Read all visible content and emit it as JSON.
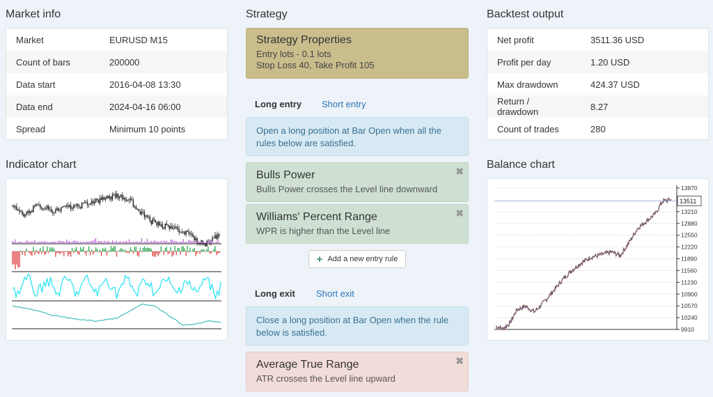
{
  "market_info": {
    "title": "Market info",
    "rows": [
      {
        "label": "Market",
        "value": "EURUSD M15"
      },
      {
        "label": "Count of bars",
        "value": "200000"
      },
      {
        "label": "Data start",
        "value": "2016-04-08 13:30"
      },
      {
        "label": "Data end",
        "value": "2024-04-16 06:00"
      },
      {
        "label": "Spread",
        "value": "Minimum 10 points"
      }
    ]
  },
  "indicator_chart": {
    "title": "Indicator chart"
  },
  "strategy": {
    "title": "Strategy",
    "properties": {
      "heading": "Strategy Properties",
      "line1": "Entry lots - 0.1 lots",
      "line2": "Stop Loss 40, Take Profit 105"
    },
    "entry_tabs": {
      "long": "Long entry",
      "short": "Short entry"
    },
    "entry_info": "Open a long position at Bar Open when all the rules below are satisfied.",
    "entry_rules": [
      {
        "name": "Bulls Power",
        "desc": "Bulls Power crosses the Level line downward"
      },
      {
        "name": "Williams' Percent Range",
        "desc": "WPR is higher than the Level line"
      }
    ],
    "add_entry_label": "Add a new entry rule",
    "exit_tabs": {
      "long": "Long exit",
      "short": "Short exit"
    },
    "exit_info": "Close a long position at Bar Open when the rule below is satisfied.",
    "exit_rules": [
      {
        "name": "Average True Range",
        "desc": "ATR crosses the Level line upward"
      }
    ],
    "remove_icon": "✖",
    "plus_icon": "+"
  },
  "backtest_output": {
    "title": "Backtest output",
    "rows": [
      {
        "label": "Net profit",
        "value": "3511.36 USD"
      },
      {
        "label": "Profit per day",
        "value": "1.20 USD"
      },
      {
        "label": "Max drawdown",
        "value": "424.37 USD"
      },
      {
        "label": "Return / drawdown",
        "value": "8.27"
      },
      {
        "label": "Count of trades",
        "value": "280"
      }
    ]
  },
  "balance_chart": {
    "title": "Balance chart"
  },
  "chart_data": [
    {
      "type": "line",
      "title": "Balance chart",
      "y_ticks": [
        13870,
        13210,
        12880,
        12550,
        12220,
        11890,
        11560,
        11230,
        10900,
        10570,
        10240,
        9910
      ],
      "ylim": [
        9910,
        13870
      ],
      "current_value_label": "13511",
      "current_value": 13511,
      "grid": true,
      "anchors": [
        [
          0,
          10000
        ],
        [
          4,
          9930
        ],
        [
          8,
          10080
        ],
        [
          12,
          10460
        ],
        [
          17,
          10560
        ],
        [
          22,
          10400
        ],
        [
          27,
          10650
        ],
        [
          33,
          11000
        ],
        [
          38,
          11300
        ],
        [
          43,
          11550
        ],
        [
          48,
          11750
        ],
        [
          54,
          11930
        ],
        [
          60,
          12000
        ],
        [
          66,
          12080
        ],
        [
          71,
          11980
        ],
        [
          76,
          12350
        ],
        [
          81,
          12750
        ],
        [
          86,
          12950
        ],
        [
          91,
          13150
        ],
        [
          95,
          13500
        ],
        [
          100,
          13550
        ]
      ]
    },
    {
      "type": "line",
      "title": "Indicator chart",
      "panes": [
        "price",
        "volume",
        "bulls-power",
        "wpr",
        "atr"
      ]
    }
  ],
  "colors": {
    "strategy_properties": "#c9bd8c",
    "info": "#d7eaf4",
    "entry_rule": "#cfe0d3",
    "exit_rule": "#f2dcd9",
    "link": "#2a75b8",
    "wpr": "#33e3f5",
    "atr": "#3fbfb8",
    "bulls_up": "#2da84a",
    "bulls_down": "#e04040"
  }
}
